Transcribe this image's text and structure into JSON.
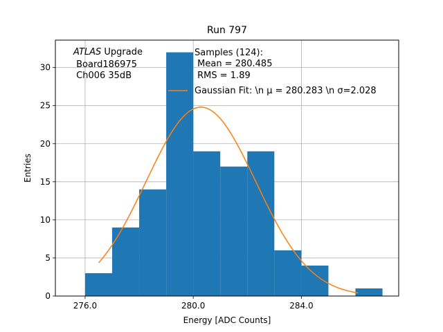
{
  "chart_data": {
    "type": "bar",
    "title": "Run 797",
    "xlabel": "Energy [ADC Counts]",
    "ylabel": "Entries",
    "xlim": [
      274.9,
      287.6
    ],
    "ylim": [
      0,
      33.6
    ],
    "grid": true,
    "x_ticks": [
      276.0,
      280.0,
      284.0
    ],
    "x_tick_labels": [
      "276.0",
      "280.0",
      "284.0"
    ],
    "y_ticks": [
      0,
      5,
      10,
      15,
      20,
      25,
      30
    ],
    "y_tick_labels": [
      "0",
      "5",
      "10",
      "15",
      "20",
      "25",
      "30"
    ],
    "histogram": {
      "bin_edges": [
        276.0,
        277.0,
        278.0,
        279.0,
        280.0,
        281.0,
        282.0,
        283.0,
        284.0,
        285.0,
        286.0,
        287.0
      ],
      "values": [
        3,
        9,
        14,
        32,
        19,
        17,
        19,
        6,
        4,
        0,
        1
      ],
      "color": "#1f77b4"
    },
    "fit": {
      "mu": 280.283,
      "sigma": 2.028,
      "amplitude": 24.8,
      "x_range": [
        276.5,
        286.1
      ],
      "color": "#ff7f0e"
    },
    "annotation": {
      "line1_italic": "ATLAS",
      "line1_rest": " Upgrade",
      "line2": " Board186975",
      "line3": " Ch006 35dB"
    },
    "legend": {
      "position": "top-right",
      "samples_line1": "Samples (124):",
      "samples_line2": " Mean = 280.485",
      "samples_line3": " RMS = 1.89",
      "fit_label": "Gaussian Fit: \\n μ = 280.283 \\n σ=2.028"
    }
  }
}
